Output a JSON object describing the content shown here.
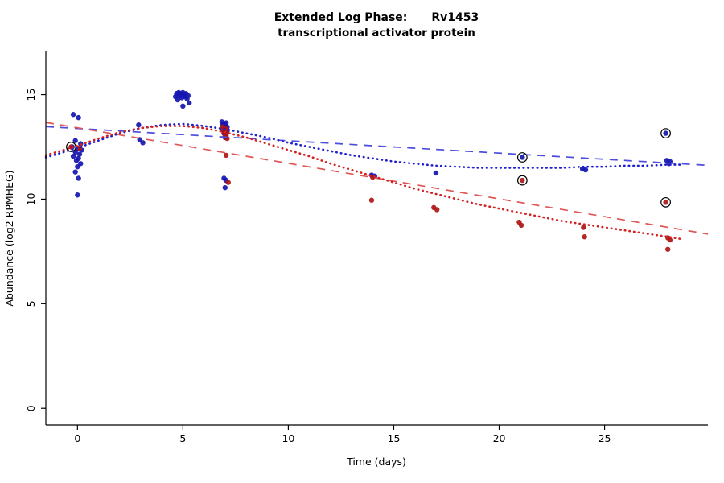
{
  "chart_data": {
    "type": "scatter",
    "title": "Extended Log Phase:   Rv1453",
    "title_parts": [
      "Extended Log Phase:",
      "Rv1453"
    ],
    "subtitle": "transcriptional activator protein",
    "xlabel": "Time  (days)",
    "ylabel": "Abundance  (log2 RPMHEG)",
    "xlim": [
      -1.5,
      29.9
    ],
    "ylim": [
      -0.8,
      17.1
    ],
    "xticks": [
      0,
      5,
      10,
      15,
      20,
      25
    ],
    "yticks": [
      0,
      5,
      10,
      15
    ],
    "grid": false,
    "legend": "none",
    "series": [
      {
        "name": "blue-data",
        "type": "points",
        "color": "#1515b0",
        "points": [
          [
            -0.2,
            14.05
          ],
          [
            0.05,
            13.9
          ],
          [
            -0.1,
            12.8
          ],
          [
            0.15,
            12.65
          ],
          [
            -0.25,
            12.5
          ],
          [
            0.0,
            12.4
          ],
          [
            0.2,
            12.35
          ],
          [
            -0.1,
            12.25
          ],
          [
            0.1,
            12.15
          ],
          [
            -0.2,
            12.05
          ],
          [
            0.05,
            11.95
          ],
          [
            -0.05,
            11.85
          ],
          [
            0.15,
            11.7
          ],
          [
            0.0,
            11.55
          ],
          [
            -0.1,
            11.3
          ],
          [
            0.05,
            11.0
          ],
          [
            0.0,
            10.2
          ],
          [
            2.9,
            13.55
          ],
          [
            2.95,
            12.85
          ],
          [
            3.1,
            12.7
          ],
          [
            4.65,
            14.9
          ],
          [
            4.7,
            15.05
          ],
          [
            4.75,
            14.75
          ],
          [
            4.8,
            15.1
          ],
          [
            4.85,
            14.95
          ],
          [
            4.9,
            15.05
          ],
          [
            4.95,
            14.85
          ],
          [
            5.0,
            15.1
          ],
          [
            5.0,
            14.45
          ],
          [
            5.05,
            15.0
          ],
          [
            5.1,
            14.9
          ],
          [
            5.15,
            15.05
          ],
          [
            5.2,
            14.8
          ],
          [
            5.25,
            14.95
          ],
          [
            5.3,
            14.6
          ],
          [
            6.85,
            13.7
          ],
          [
            6.9,
            13.55
          ],
          [
            6.95,
            13.6
          ],
          [
            7.0,
            13.5
          ],
          [
            7.05,
            13.65
          ],
          [
            7.1,
            13.45
          ],
          [
            6.9,
            13.35
          ],
          [
            7.0,
            13.3
          ],
          [
            7.1,
            13.25
          ],
          [
            6.95,
            13.15
          ],
          [
            7.05,
            13.05
          ],
          [
            7.0,
            12.95
          ],
          [
            6.95,
            11.0
          ],
          [
            7.05,
            10.9
          ],
          [
            7.0,
            10.55
          ],
          [
            13.95,
            11.15
          ],
          [
            14.1,
            11.1
          ],
          [
            17.0,
            11.25
          ],
          [
            21.1,
            12.0
          ],
          [
            23.95,
            11.45
          ],
          [
            24.1,
            11.4
          ],
          [
            27.9,
            13.15
          ],
          [
            27.95,
            11.85
          ],
          [
            28.1,
            11.8
          ],
          [
            28.05,
            11.7
          ]
        ]
      },
      {
        "name": "red-data",
        "type": "points",
        "color": "#b01515",
        "points": [
          [
            -0.3,
            12.5
          ],
          [
            0.1,
            12.45
          ],
          [
            6.9,
            13.45
          ],
          [
            7.0,
            13.4
          ],
          [
            7.1,
            13.3
          ],
          [
            6.95,
            13.2
          ],
          [
            7.05,
            13.1
          ],
          [
            7.0,
            13.0
          ],
          [
            7.1,
            12.9
          ],
          [
            7.05,
            12.1
          ],
          [
            7.15,
            10.8
          ],
          [
            14.0,
            11.05
          ],
          [
            13.95,
            9.95
          ],
          [
            16.9,
            9.6
          ],
          [
            17.05,
            9.5
          ],
          [
            21.1,
            10.9
          ],
          [
            20.95,
            8.9
          ],
          [
            21.05,
            8.75
          ],
          [
            24.0,
            8.65
          ],
          [
            24.05,
            8.2
          ],
          [
            27.9,
            9.85
          ],
          [
            28.0,
            8.15
          ],
          [
            28.1,
            8.05
          ],
          [
            28.0,
            7.6
          ]
        ]
      },
      {
        "name": "blue-linear-fit",
        "type": "line",
        "style": "dashed",
        "color": "#4d4ddd",
        "points": [
          [
            -1.5,
            13.47
          ],
          [
            29.9,
            11.62
          ]
        ]
      },
      {
        "name": "red-linear-fit",
        "type": "line",
        "style": "dashed",
        "color": "#e05555",
        "points": [
          [
            -1.5,
            13.67
          ],
          [
            29.9,
            8.33
          ]
        ]
      },
      {
        "name": "blue-loess-fit",
        "type": "line",
        "style": "dotted",
        "color": "#2020cc",
        "points": [
          [
            -1.5,
            12.0
          ],
          [
            0,
            12.45
          ],
          [
            1,
            12.8
          ],
          [
            2,
            13.15
          ],
          [
            3,
            13.4
          ],
          [
            4,
            13.55
          ],
          [
            5,
            13.6
          ],
          [
            6,
            13.5
          ],
          [
            7,
            13.35
          ],
          [
            8,
            13.15
          ],
          [
            9,
            12.95
          ],
          [
            10,
            12.7
          ],
          [
            11,
            12.5
          ],
          [
            12,
            12.3
          ],
          [
            13,
            12.1
          ],
          [
            14,
            11.95
          ],
          [
            15,
            11.8
          ],
          [
            16,
            11.7
          ],
          [
            17,
            11.6
          ],
          [
            18,
            11.55
          ],
          [
            19,
            11.5
          ],
          [
            20,
            11.5
          ],
          [
            21,
            11.5
          ],
          [
            22,
            11.5
          ],
          [
            23,
            11.5
          ],
          [
            24,
            11.55
          ],
          [
            25,
            11.55
          ],
          [
            26,
            11.6
          ],
          [
            27,
            11.6
          ],
          [
            28,
            11.65
          ],
          [
            28.6,
            11.65
          ]
        ]
      },
      {
        "name": "red-loess-fit",
        "type": "line",
        "style": "dotted",
        "color": "#d42020",
        "points": [
          [
            -1.5,
            12.1
          ],
          [
            0,
            12.55
          ],
          [
            1,
            12.9
          ],
          [
            2,
            13.2
          ],
          [
            3,
            13.4
          ],
          [
            4,
            13.5
          ],
          [
            5,
            13.5
          ],
          [
            6,
            13.4
          ],
          [
            7,
            13.2
          ],
          [
            8,
            12.95
          ],
          [
            9,
            12.65
          ],
          [
            10,
            12.35
          ],
          [
            11,
            12.05
          ],
          [
            12,
            11.7
          ],
          [
            13,
            11.4
          ],
          [
            14,
            11.1
          ],
          [
            15,
            10.8
          ],
          [
            16,
            10.5
          ],
          [
            17,
            10.25
          ],
          [
            18,
            10.0
          ],
          [
            19,
            9.75
          ],
          [
            20,
            9.55
          ],
          [
            21,
            9.35
          ],
          [
            22,
            9.15
          ],
          [
            23,
            8.95
          ],
          [
            24,
            8.8
          ],
          [
            25,
            8.65
          ],
          [
            26,
            8.5
          ],
          [
            27,
            8.35
          ],
          [
            28,
            8.2
          ],
          [
            28.6,
            8.1
          ]
        ]
      },
      {
        "name": "highlighted-points",
        "type": "rings",
        "color": "#000000",
        "points": [
          [
            -0.3,
            12.5
          ],
          [
            21.1,
            12.0
          ],
          [
            21.1,
            10.9
          ],
          [
            27.9,
            13.15
          ],
          [
            27.9,
            9.85
          ]
        ]
      }
    ]
  }
}
